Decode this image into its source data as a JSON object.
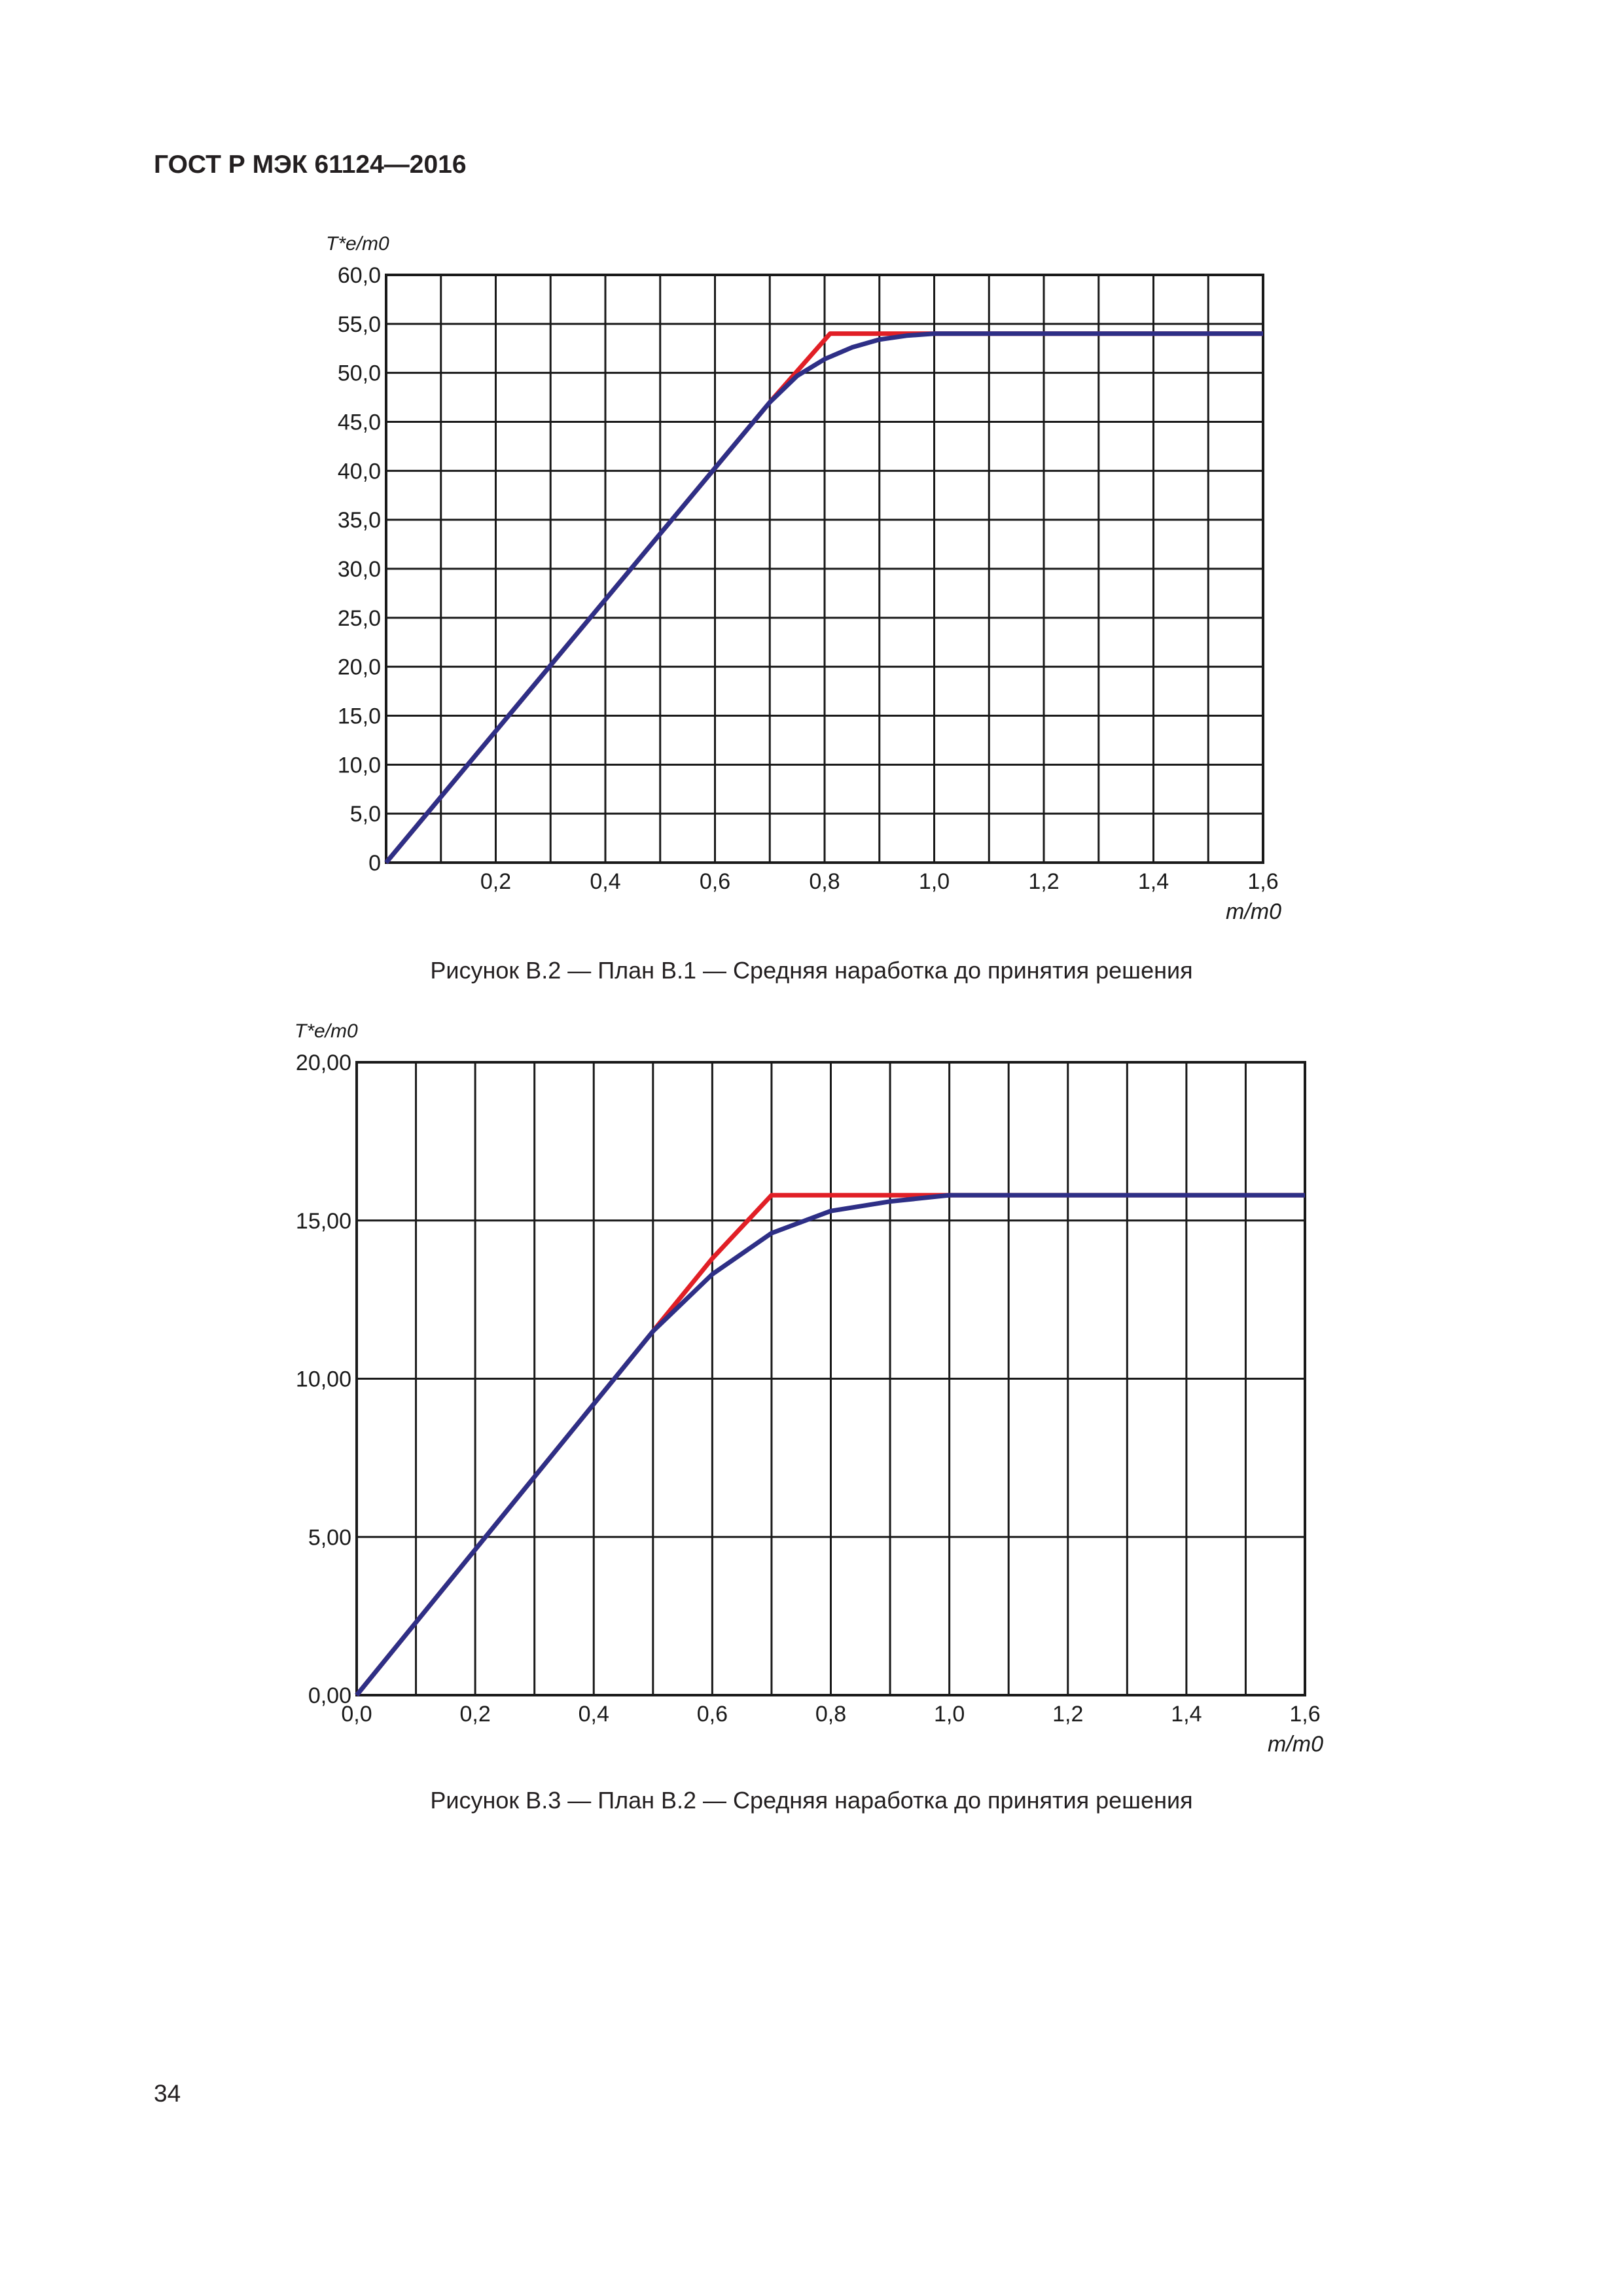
{
  "header": {
    "title": "ГОСТ Р МЭК 61124—2016"
  },
  "page": {
    "number": "34"
  },
  "colors": {
    "grid": "#1a1a1a",
    "red_line": "#e11f26",
    "blue_line": "#2e2f86"
  },
  "figures": [
    {
      "caption": "Рисунок В.2 — План В.1 — Средняя наработка до принятия решения"
    },
    {
      "caption": "Рисунок В.3 — План В.2 — Средняя наработка до принятия решения"
    }
  ],
  "chart_data": [
    {
      "type": "line",
      "ylabel": "T*e/m0",
      "xlabel": "m/m0",
      "xlim": [
        0,
        1.6
      ],
      "ylim": [
        0,
        60
      ],
      "grid": true,
      "x_ticks": [
        "",
        "0,2",
        "0,4",
        "0,6",
        "0,8",
        "1,0",
        "1,2",
        "1,4",
        "1,6"
      ],
      "y_ticks": [
        "0",
        "5,0",
        "10,0",
        "15,0",
        "20,0",
        "25,0",
        "30,0",
        "35,0",
        "40,0",
        "45,0",
        "50,0",
        "55,0",
        "60,0"
      ],
      "series": [
        {
          "color": "#e11f26",
          "x": [
            0,
            0.7,
            0.81,
            1.6
          ],
          "y": [
            0,
            47,
            54,
            54
          ]
        },
        {
          "color": "#2e2f86",
          "x": [
            0,
            0.7,
            0.75,
            0.8,
            0.85,
            0.9,
            0.95,
            1.0,
            1.6
          ],
          "y": [
            0,
            47,
            49.7,
            51.4,
            52.6,
            53.4,
            53.8,
            54,
            54
          ]
        }
      ]
    },
    {
      "type": "line",
      "ylabel": "T*e/m0",
      "xlabel": "m/m0",
      "xlim": [
        0,
        1.6
      ],
      "ylim": [
        0,
        20
      ],
      "grid": true,
      "x_ticks": [
        "0,0",
        "0,2",
        "0,4",
        "0,6",
        "0,8",
        "1,0",
        "1,2",
        "1,4",
        "1,6"
      ],
      "y_ticks": [
        "0,00",
        "5,00",
        "10,00",
        "15,00",
        "20,00"
      ],
      "series": [
        {
          "color": "#e11f26",
          "x": [
            0,
            0.5,
            0.6,
            0.7,
            1.0,
            1.6
          ],
          "y": [
            0,
            11.5,
            13.8,
            15.8,
            15.8,
            15.8
          ]
        },
        {
          "color": "#2e2f86",
          "x": [
            0,
            0.5,
            0.6,
            0.7,
            0.8,
            0.9,
            1.0,
            1.6
          ],
          "y": [
            0,
            11.5,
            13.3,
            14.6,
            15.3,
            15.6,
            15.8,
            15.8
          ]
        }
      ]
    }
  ]
}
